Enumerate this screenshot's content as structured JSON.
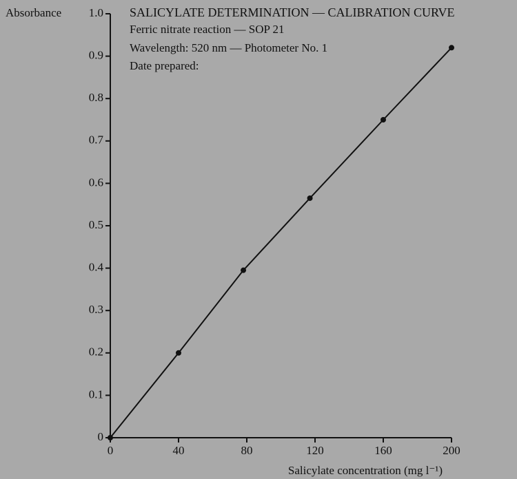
{
  "chart_data": {
    "type": "line",
    "title": "SALICYLATE DETERMINATION — CALIBRATION CURVE",
    "subtitle": [
      "Ferric nitrate reaction — SOP 21",
      "Wavelength: 520 nm — Photometer No. 1",
      "Date prepared:"
    ],
    "y_label": "Absorbance",
    "x_label": "Salicylate concentration (mg l⁻¹)",
    "series": [
      {
        "name": "Calibration",
        "color": "#111111",
        "x": [
          0,
          40,
          78,
          117,
          160,
          200
        ],
        "values": [
          0,
          0.2,
          0.395,
          0.565,
          0.75,
          0.92
        ]
      }
    ],
    "xlim": [
      0,
      200
    ],
    "xticks": [
      0,
      40,
      80,
      120,
      160,
      200
    ],
    "ylim": [
      0,
      {
        "value": 1,
        "label": "1.0"
      }
    ],
    "yticks": [
      0,
      0.1,
      0.2,
      0.3,
      0.4,
      0.5,
      0.6,
      0.7,
      0.8,
      0.9,
      {
        "value": 1,
        "label": "1.0"
      }
    ],
    "grid": false
  }
}
